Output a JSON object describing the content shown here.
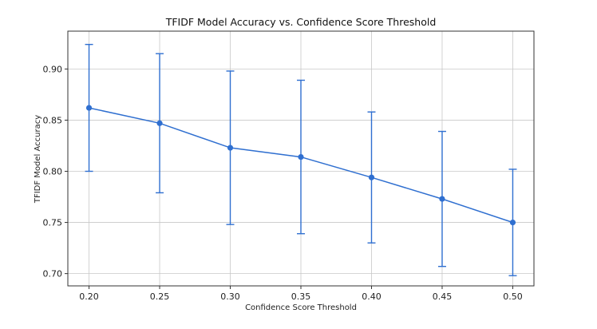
{
  "chart_data": {
    "type": "line",
    "title": "TFIDF Model Accuracy vs. Confidence Score Threshold",
    "xlabel": "Confidence Score Threshold",
    "ylabel": "TFIDF Model Accuracy",
    "x": [
      0.2,
      0.25,
      0.3,
      0.35,
      0.4,
      0.45,
      0.5
    ],
    "x_tick_labels": [
      "0.20",
      "0.25",
      "0.30",
      "0.35",
      "0.40",
      "0.45",
      "0.50"
    ],
    "y_ticks": [
      0.7,
      0.75,
      0.8,
      0.85,
      0.9
    ],
    "y_tick_labels": [
      "0.70",
      "0.75",
      "0.80",
      "0.85",
      "0.90"
    ],
    "series": [
      {
        "values": [
          0.862,
          0.847,
          0.823,
          0.814,
          0.794,
          0.773,
          0.75
        ],
        "error_upper": [
          0.924,
          0.915,
          0.898,
          0.889,
          0.858,
          0.839,
          0.802
        ],
        "error_lower": [
          0.8,
          0.779,
          0.748,
          0.739,
          0.73,
          0.707,
          0.698
        ],
        "color": "#2f6fd0"
      }
    ],
    "xlim": [
      0.185,
      0.515
    ],
    "ylim": [
      0.688,
      0.937
    ],
    "grid": true,
    "legend": "none"
  }
}
